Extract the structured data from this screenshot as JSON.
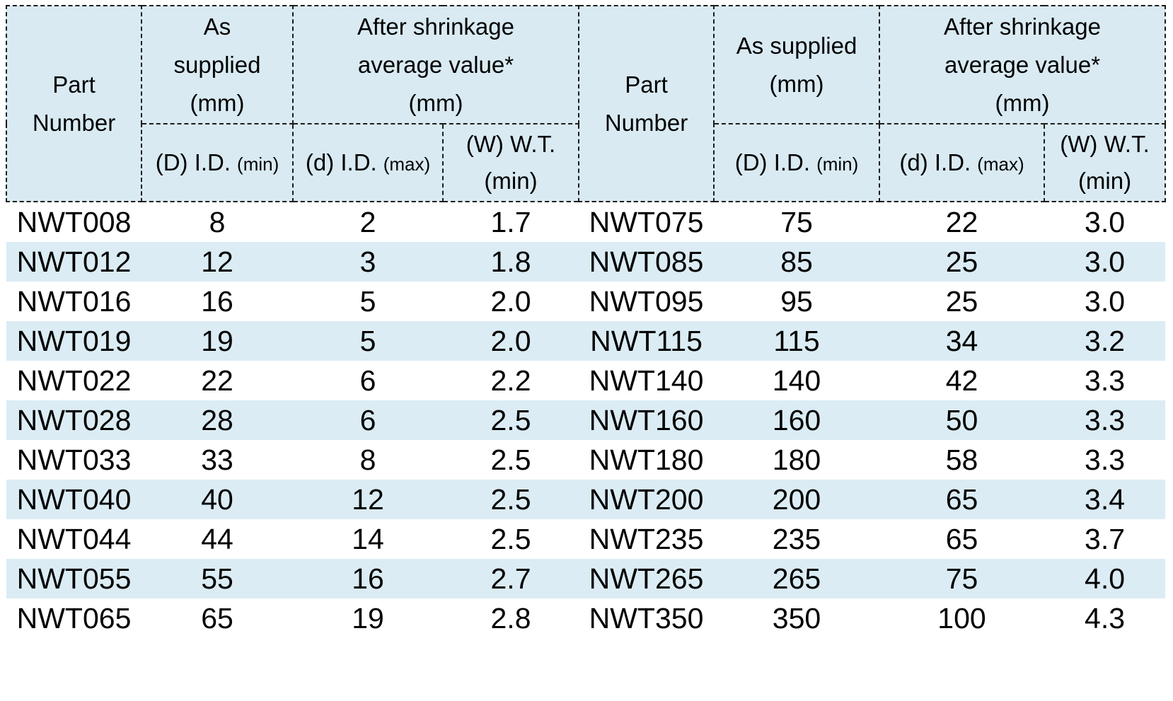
{
  "colors": {
    "header_background": "#d9eaf2",
    "row_stripe_background": "#dbecf4",
    "border": "#1c1c1c",
    "text": "#000000"
  },
  "table": {
    "header": {
      "part_number_lines": [
        "Part",
        "Number"
      ],
      "left": {
        "as_supplied_lines": [
          "As",
          "supplied",
          "(mm)"
        ],
        "after_shrinkage_lines": [
          "After shrinkage",
          "average value*",
          "(mm)"
        ]
      },
      "right": {
        "as_supplied_lines": [
          "As supplied",
          "(mm)"
        ],
        "after_shrinkage_lines": [
          "After shrinkage",
          "average value*",
          "(mm)"
        ]
      },
      "sub": {
        "d_id_label": "(D) I.D.",
        "d_id_qualifier": "(min)",
        "shrunk_id_label": "(d) I.D.",
        "shrunk_id_qualifier": "(max)",
        "wt_line1": "(W) W.T.",
        "wt_line2": "(min)"
      }
    },
    "rows": [
      {
        "l_part": "NWT008",
        "l_d": "8",
        "l_d2": "2",
        "l_w": "1.7",
        "r_part": "NWT075",
        "r_d": "75",
        "r_d2": "22",
        "r_w": "3.0"
      },
      {
        "l_part": "NWT012",
        "l_d": "12",
        "l_d2": "3",
        "l_w": "1.8",
        "r_part": "NWT085",
        "r_d": "85",
        "r_d2": "25",
        "r_w": "3.0"
      },
      {
        "l_part": "NWT016",
        "l_d": "16",
        "l_d2": "5",
        "l_w": "2.0",
        "r_part": "NWT095",
        "r_d": "95",
        "r_d2": "25",
        "r_w": "3.0"
      },
      {
        "l_part": "NWT019",
        "l_d": "19",
        "l_d2": "5",
        "l_w": "2.0",
        "r_part": "NWT115",
        "r_d": "115",
        "r_d2": "34",
        "r_w": "3.2"
      },
      {
        "l_part": "NWT022",
        "l_d": "22",
        "l_d2": "6",
        "l_w": "2.2",
        "r_part": "NWT140",
        "r_d": "140",
        "r_d2": "42",
        "r_w": "3.3"
      },
      {
        "l_part": "NWT028",
        "l_d": "28",
        "l_d2": "6",
        "l_w": "2.5",
        "r_part": "NWT160",
        "r_d": "160",
        "r_d2": "50",
        "r_w": "3.3"
      },
      {
        "l_part": "NWT033",
        "l_d": "33",
        "l_d2": "8",
        "l_w": "2.5",
        "r_part": "NWT180",
        "r_d": "180",
        "r_d2": "58",
        "r_w": "3.3"
      },
      {
        "l_part": "NWT040",
        "l_d": "40",
        "l_d2": "12",
        "l_w": "2.5",
        "r_part": "NWT200",
        "r_d": "200",
        "r_d2": "65",
        "r_w": "3.4"
      },
      {
        "l_part": "NWT044",
        "l_d": "44",
        "l_d2": "14",
        "l_w": "2.5",
        "r_part": "NWT235",
        "r_d": "235",
        "r_d2": "65",
        "r_w": "3.7"
      },
      {
        "l_part": "NWT055",
        "l_d": "55",
        "l_d2": "16",
        "l_w": "2.7",
        "r_part": "NWT265",
        "r_d": "265",
        "r_d2": "75",
        "r_w": "4.0"
      },
      {
        "l_part": "NWT065",
        "l_d": "65",
        "l_d2": "19",
        "l_w": "2.8",
        "r_part": "NWT350",
        "r_d": "350",
        "r_d2": "100",
        "r_w": "4.3"
      }
    ]
  }
}
